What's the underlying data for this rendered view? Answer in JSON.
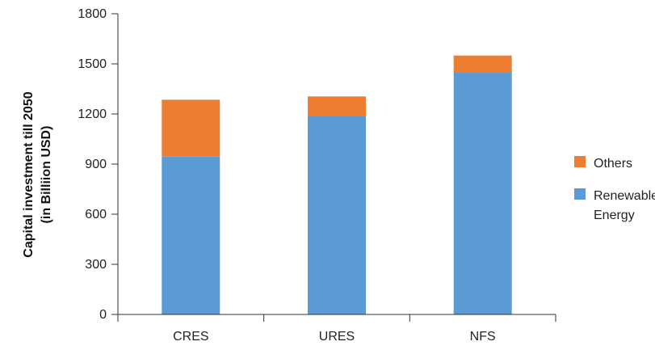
{
  "chart_data": {
    "type": "bar",
    "stacked": true,
    "categories": [
      "CRES",
      "URES",
      "NFS"
    ],
    "series": [
      {
        "name": "Renewable Energy",
        "label_lines": [
          "Renewable",
          "Energy"
        ],
        "values": [
          945,
          1190,
          1450
        ],
        "color": "#5b9bd5"
      },
      {
        "name": "Others",
        "label_lines": [
          "Others"
        ],
        "values": [
          340,
          115,
          100
        ],
        "color": "#ed7d31"
      }
    ],
    "ylabel_lines": [
      "Capital investment till 2050",
      "(in Billiion USD)"
    ],
    "ylim": [
      0,
      1800
    ],
    "yticks": [
      0,
      300,
      600,
      900,
      1200,
      1500,
      1800
    ],
    "grid": false,
    "legend_position": "right",
    "legend_order": [
      "Others",
      "Renewable Energy"
    ]
  }
}
